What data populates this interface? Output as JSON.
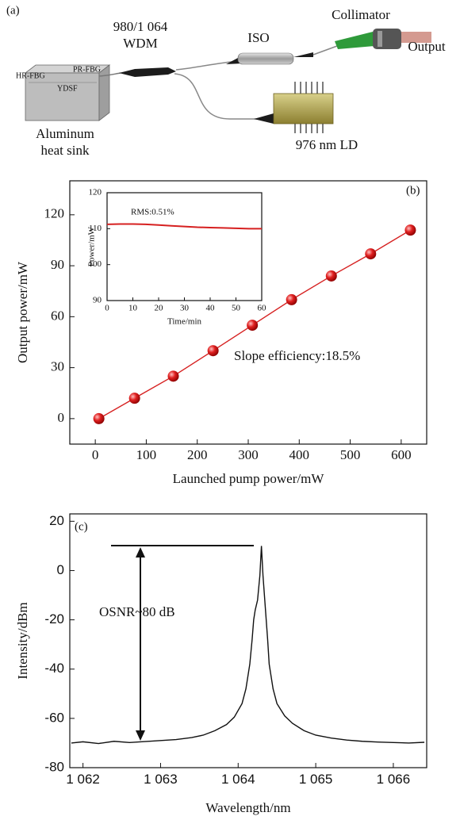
{
  "diagram": {
    "panel_label": "(a)",
    "wdm_line1": "980/1 064",
    "wdm_line2": "WDM",
    "iso": "ISO",
    "collimator": "Collimator",
    "output": "Output",
    "hr_fbg": "HR-FBG",
    "pr_fbg": "PR-FBG",
    "ydsf": "YDSF",
    "heat_sink_line1": "Aluminum",
    "heat_sink_line2": "heat sink",
    "ld": "976 nm LD"
  },
  "chart_data": [
    {
      "type": "line",
      "panel_label": "(b)",
      "x_label": "Launched pump power/mW",
      "y_label": "Output power/mW",
      "annotation": "Slope efficiency:18.5%",
      "x": [
        7,
        77,
        153,
        231,
        308,
        385,
        463,
        540,
        618
      ],
      "series": [
        {
          "color": "#d62020",
          "marker": true,
          "values": [
            0,
            12,
            25,
            40,
            55,
            70,
            84,
            97,
            111
          ]
        }
      ],
      "xlim": [
        -50,
        650
      ],
      "ylim": [
        -15,
        140
      ],
      "xticks": [
        0,
        100,
        200,
        300,
        400,
        500,
        600
      ],
      "yticks": [
        0,
        30,
        60,
        90,
        120
      ]
    },
    {
      "type": "line",
      "x_label": "Time/min",
      "y_label": "Power/mW",
      "annotation": "RMS:0.51%",
      "x": [
        0,
        5,
        10,
        15,
        20,
        25,
        30,
        35,
        40,
        45,
        50,
        55,
        60
      ],
      "series": [
        {
          "color": "#d62020",
          "marker": false,
          "values": [
            111.2,
            111.3,
            111.3,
            111.2,
            111.0,
            110.8,
            110.6,
            110.4,
            110.3,
            110.2,
            110.1,
            110.0,
            110.0
          ]
        }
      ],
      "xlim": [
        0,
        60
      ],
      "ylim": [
        90,
        120
      ],
      "xticks": [
        0,
        10,
        20,
        30,
        40,
        50,
        60
      ],
      "yticks": [
        90,
        100,
        110,
        120
      ]
    },
    {
      "type": "line",
      "panel_label": "(c)",
      "x_label": "Wavelength/nm",
      "y_label": "Intensity/dBm",
      "annotation": "OSNR~80 dB",
      "x": [
        1061.85,
        1062.0,
        1062.2,
        1062.4,
        1062.6,
        1062.8,
        1063.0,
        1063.2,
        1063.4,
        1063.55,
        1063.7,
        1063.85,
        1063.95,
        1064.05,
        1064.1,
        1064.15,
        1064.18,
        1064.2,
        1064.22,
        1064.25,
        1064.28,
        1064.3,
        1064.32,
        1064.35,
        1064.38,
        1064.4,
        1064.45,
        1064.5,
        1064.6,
        1064.7,
        1064.85,
        1065.0,
        1065.2,
        1065.4,
        1065.6,
        1065.8,
        1066.0,
        1066.2,
        1066.4
      ],
      "series": [
        {
          "color": "#111111",
          "marker": false,
          "values": [
            -70,
            -69.5,
            -70.2,
            -69.3,
            -69.8,
            -69.4,
            -69.0,
            -68.6,
            -67.8,
            -66.8,
            -65,
            -62.5,
            -59.5,
            -54,
            -48,
            -38,
            -28,
            -20,
            -16,
            -12,
            -2,
            10,
            -2,
            -15,
            -28,
            -38,
            -48,
            -54,
            -59,
            -62,
            -65,
            -66.8,
            -68,
            -68.8,
            -69.3,
            -69.6,
            -69.8,
            -70,
            -69.7
          ]
        }
      ],
      "xlim": [
        1061.83,
        1066.43
      ],
      "ylim": [
        -80,
        23
      ],
      "xticks": [
        {
          "value": 1062,
          "label": "1 062"
        },
        {
          "value": 1063,
          "label": "1 063"
        },
        {
          "value": 1064,
          "label": "1 064"
        },
        {
          "value": 1065,
          "label": "1 065"
        },
        {
          "value": 1066,
          "label": "1 066"
        }
      ],
      "yticks": [
        -80,
        -60,
        -40,
        -20,
        0,
        20
      ]
    }
  ]
}
